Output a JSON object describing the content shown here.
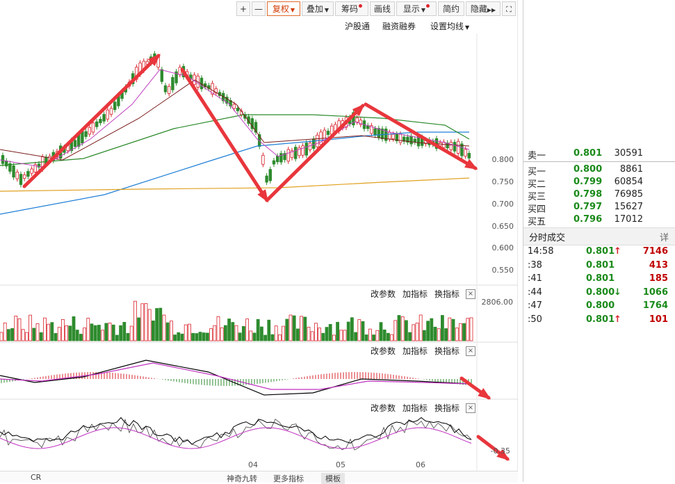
{
  "toolbar": {
    "plus": "+",
    "minus": "—",
    "fuquan": "复权",
    "diejia": "叠加",
    "chouma": "筹码",
    "huaxian": "画线",
    "xianshi": "显示",
    "jianyue": "简约",
    "yincang": "隐藏"
  },
  "subbar": {
    "hugutong": "沪股通",
    "rongzi": "融资融券",
    "junxian": "设置均线"
  },
  "price_axis": [
    "0.800",
    "0.750",
    "0.700",
    "0.650",
    "0.600",
    "0.550"
  ],
  "volume_axis": "2806.00",
  "lower_axis": "-0.35",
  "panel_tools": {
    "param": "改参数",
    "add": "加指标",
    "change": "换指标",
    "close": "×"
  },
  "date_axis": [
    "04",
    "05",
    "06"
  ],
  "orderbook": {
    "sell1": {
      "label": "卖一",
      "price": "0.801",
      "vol": "30591"
    },
    "buys": [
      {
        "label": "买一",
        "price": "0.800",
        "vol": "8861"
      },
      {
        "label": "买二",
        "price": "0.799",
        "vol": "60854"
      },
      {
        "label": "买三",
        "price": "0.798",
        "vol": "76985"
      },
      {
        "label": "买四",
        "price": "0.797",
        "vol": "15627"
      },
      {
        "label": "买五",
        "price": "0.796",
        "vol": "17012"
      }
    ]
  },
  "trades_header": {
    "title": "分时成交",
    "detail": "详"
  },
  "trades": [
    {
      "time": "14:58",
      "price": "0.801",
      "arrow": "up",
      "vol": "7146",
      "color": "red"
    },
    {
      "time": ":38",
      "price": "0.801",
      "arrow": "",
      "vol": "413",
      "color": "red"
    },
    {
      "time": ":41",
      "price": "0.801",
      "arrow": "",
      "vol": "185",
      "color": "red"
    },
    {
      "time": ":44",
      "price": "0.800",
      "arrow": "down",
      "vol": "1066",
      "color": "green"
    },
    {
      "time": ":47",
      "price": "0.800",
      "arrow": "",
      "vol": "1764",
      "color": "green"
    },
    {
      "time": ":50",
      "price": "0.801",
      "arrow": "up",
      "vol": "101",
      "color": "red"
    }
  ],
  "bottom_bar": {
    "cr": "CR",
    "shenqi": "神奇九转",
    "more": "更多指标",
    "template": "模板"
  },
  "colors": {
    "up": "#d9232b",
    "down": "#2e8b2e",
    "arrow": "#e8363c",
    "orange": "#e07020"
  }
}
